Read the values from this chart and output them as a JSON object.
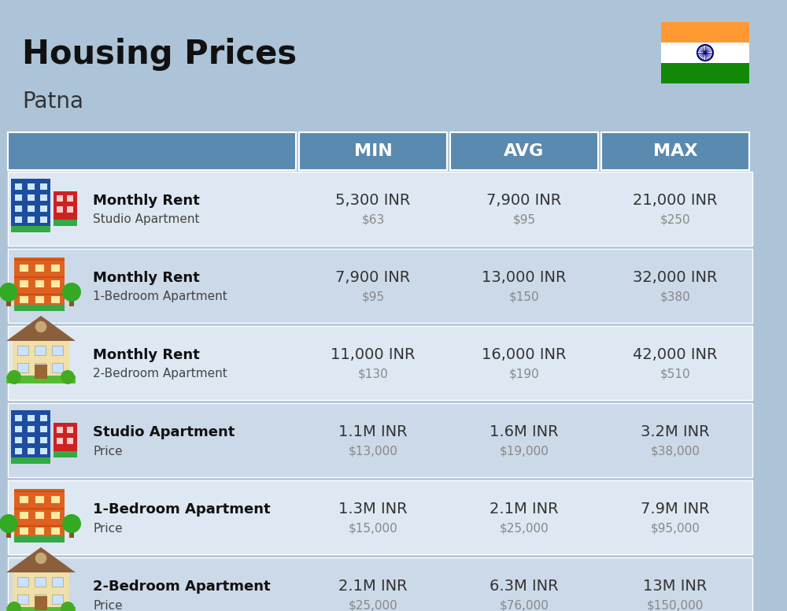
{
  "title": "Housing Prices",
  "subtitle": "Patna",
  "bg_color": "#adc4d8",
  "header_bg": "#5a8ab0",
  "header_text_color": "#ffffff",
  "row_bg_even": "#dde8f2",
  "row_bg_odd": "#ccd9e8",
  "col_headers": [
    "MIN",
    "AVG",
    "MAX"
  ],
  "rows": [
    {
      "label_bold": "Monthly Rent",
      "label_sub": "Studio Apartment",
      "icon_type": "studio_blue",
      "min_inr": "5,300 INR",
      "min_usd": "$63",
      "avg_inr": "7,900 INR",
      "avg_usd": "$95",
      "max_inr": "21,000 INR",
      "max_usd": "$250"
    },
    {
      "label_bold": "Monthly Rent",
      "label_sub": "1-Bedroom Apartment",
      "icon_type": "bedroom1_orange",
      "min_inr": "7,900 INR",
      "min_usd": "$95",
      "avg_inr": "13,000 INR",
      "avg_usd": "$150",
      "max_inr": "32,000 INR",
      "max_usd": "$380"
    },
    {
      "label_bold": "Monthly Rent",
      "label_sub": "2-Bedroom Apartment",
      "icon_type": "bedroom2_tan",
      "min_inr": "11,000 INR",
      "min_usd": "$130",
      "avg_inr": "16,000 INR",
      "avg_usd": "$190",
      "max_inr": "42,000 INR",
      "max_usd": "$510"
    },
    {
      "label_bold": "Studio Apartment",
      "label_sub": "Price",
      "icon_type": "studio_blue",
      "min_inr": "1.1M INR",
      "min_usd": "$13,000",
      "avg_inr": "1.6M INR",
      "avg_usd": "$19,000",
      "max_inr": "3.2M INR",
      "max_usd": "$38,000"
    },
    {
      "label_bold": "1-Bedroom Apartment",
      "label_sub": "Price",
      "icon_type": "bedroom1_orange",
      "min_inr": "1.3M INR",
      "min_usd": "$15,000",
      "avg_inr": "2.1M INR",
      "avg_usd": "$25,000",
      "max_inr": "7.9M INR",
      "max_usd": "$95,000"
    },
    {
      "label_bold": "2-Bedroom Apartment",
      "label_sub": "Price",
      "icon_type": "bedroom2_tan",
      "min_inr": "2.1M INR",
      "min_usd": "$25,000",
      "avg_inr": "6.3M INR",
      "avg_usd": "$76,000",
      "max_inr": "13M INR",
      "max_usd": "$150,000"
    }
  ],
  "inr_color": "#333333",
  "usd_color": "#888888",
  "label_bold_color": "#111111",
  "label_sub_color": "#444444",
  "flag_colors": [
    "#FF9933",
    "#FFFFFF",
    "#138808"
  ],
  "flag_navy": "#000080"
}
